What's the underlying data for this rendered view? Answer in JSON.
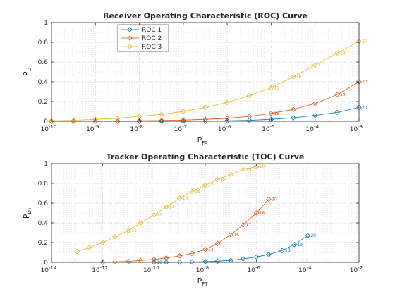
{
  "colors": {
    "roc1": "#0072BD",
    "roc2": "#D95319",
    "roc3": "#EDB120",
    "axis": "#262626",
    "grid_major": "#c8c8c8",
    "grid_minor": "#dddddd"
  },
  "chart_data": [
    {
      "id": "roc",
      "type": "line",
      "title": "Receiver Operating Characteristic (ROC) Curve",
      "xlabel": {
        "main": "P",
        "sub": "FA"
      },
      "ylabel": {
        "main": "P",
        "sub": "D"
      },
      "xscale": "log",
      "xlim": [
        1e-10,
        0.001
      ],
      "ylim": [
        0,
        1
      ],
      "grid": true,
      "legend": {
        "placement": "top-left",
        "entries": [
          "ROC 1",
          "ROC 2",
          "ROC 3"
        ]
      },
      "marker": "diamond",
      "x_ticks": [
        {
          "value": 1e-10,
          "label": "10",
          "exp": "-10"
        },
        {
          "value": 1e-09,
          "label": "10",
          "exp": "-9"
        },
        {
          "value": 1e-08,
          "label": "10",
          "exp": "-8"
        },
        {
          "value": 1e-07,
          "label": "10",
          "exp": "-7"
        },
        {
          "value": 1e-06,
          "label": "10",
          "exp": "-6"
        },
        {
          "value": 1e-05,
          "label": "10",
          "exp": "-5"
        },
        {
          "value": 0.0001,
          "label": "10",
          "exp": "-4"
        },
        {
          "value": 0.001,
          "label": "10",
          "exp": "-3"
        }
      ],
      "y_ticks": [
        {
          "value": 0,
          "label": "0"
        },
        {
          "value": 0.2,
          "label": "0.2"
        },
        {
          "value": 0.4,
          "label": "0.4"
        },
        {
          "value": 0.6,
          "label": "0.6"
        },
        {
          "value": 0.8,
          "label": "0.8"
        },
        {
          "value": 1,
          "label": "1"
        }
      ],
      "series": [
        {
          "name": "ROC 1",
          "color_key": "roc1",
          "x": [
            1e-10,
            3.2e-10,
            1e-09,
            3.2e-09,
            1e-08,
            3.2e-08,
            1e-07,
            3.2e-07,
            1e-06,
            3.2e-06,
            1e-05,
            3.2e-05,
            0.0001,
            0.00032,
            0.001
          ],
          "y": [
            0.0,
            0.0,
            0.0,
            0.0,
            0.0,
            0.0,
            0.0,
            0.002,
            0.005,
            0.01,
            0.02,
            0.035,
            0.06,
            0.09,
            0.14
          ],
          "point_labels": [
            "",
            "",
            "",
            "",
            "",
            "",
            "",
            "",
            "",
            "",
            "",
            "",
            "",
            "",
            "20"
          ]
        },
        {
          "name": "ROC 2",
          "color_key": "roc2",
          "x": [
            1e-10,
            3.2e-10,
            1e-09,
            3.2e-09,
            1e-08,
            3.2e-08,
            1e-07,
            3.2e-07,
            1e-06,
            3.2e-06,
            1e-05,
            3.2e-05,
            0.0001,
            0.00032,
            0.001
          ],
          "y": [
            0.0,
            0.0,
            0.0,
            0.002,
            0.005,
            0.008,
            0.012,
            0.02,
            0.03,
            0.05,
            0.08,
            0.12,
            0.18,
            0.27,
            0.4
          ],
          "point_labels": [
            "",
            "",
            "",
            "",
            "",
            "",
            "",
            "",
            "",
            "",
            "15",
            "",
            "",
            "19",
            "20"
          ]
        },
        {
          "name": "ROC 3",
          "color_key": "roc3",
          "x": [
            1e-10,
            3.2e-10,
            1e-09,
            3.2e-09,
            1e-08,
            3.2e-08,
            1e-07,
            3.2e-07,
            1e-06,
            3.2e-06,
            1e-05,
            3.2e-05,
            0.0001,
            0.00032,
            0.001
          ],
          "y": [
            0.005,
            0.01,
            0.02,
            0.03,
            0.05,
            0.07,
            0.1,
            0.14,
            0.19,
            0.26,
            0.34,
            0.45,
            0.57,
            0.69,
            0.81
          ],
          "point_labels": [
            "",
            "",
            "",
            "",
            "",
            "",
            "",
            "",
            "",
            "",
            "15",
            "16",
            "17",
            "18",
            "20"
          ]
        }
      ]
    },
    {
      "id": "toc",
      "type": "line",
      "title": "Tracker Operating Characteristic (TOC) Curve",
      "xlabel": {
        "main": "P",
        "sub": "FT"
      },
      "ylabel": {
        "main": "P",
        "sub": "DT"
      },
      "xscale": "log",
      "xlim": [
        1e-14,
        0.01
      ],
      "ylim": [
        0,
        1
      ],
      "grid": true,
      "marker": "diamond",
      "x_ticks": [
        {
          "value": 1e-14,
          "label": "10",
          "exp": "-14"
        },
        {
          "value": 1e-12,
          "label": "10",
          "exp": "-12"
        },
        {
          "value": 1e-10,
          "label": "10",
          "exp": "-10"
        },
        {
          "value": 1e-08,
          "label": "10",
          "exp": "-8"
        },
        {
          "value": 1e-06,
          "label": "10",
          "exp": "-6"
        },
        {
          "value": 0.0001,
          "label": "10",
          "exp": "-4"
        },
        {
          "value": 0.01,
          "label": "10",
          "exp": "-2"
        }
      ],
      "y_ticks": [
        {
          "value": 0,
          "label": "0"
        },
        {
          "value": 0.2,
          "label": "0.2"
        },
        {
          "value": 0.4,
          "label": "0.4"
        },
        {
          "value": 0.6,
          "label": "0.6"
        },
        {
          "value": 0.8,
          "label": "0.8"
        },
        {
          "value": 1,
          "label": "1"
        }
      ],
      "series": [
        {
          "name": "ROC 1",
          "color_key": "roc1",
          "x": [
            1e-10,
            3e-10,
            1e-09,
            3e-09,
            1e-08,
            3e-08,
            1e-07,
            3e-07,
            1e-06,
            3e-06,
            1e-05,
            3e-05,
            0.0001
          ],
          "y": [
            0.0,
            0.0,
            0.002,
            0.004,
            0.007,
            0.012,
            0.02,
            0.035,
            0.055,
            0.08,
            0.12,
            0.18,
            0.27
          ],
          "point_labels": [
            "10",
            "",
            "",
            "",
            "",
            "",
            "",
            "",
            "",
            "",
            "18",
            "19",
            "20"
          ]
        },
        {
          "name": "ROC 2",
          "color_key": "roc2",
          "x": [
            1e-12,
            3e-12,
            1e-11,
            3e-11,
            1e-10,
            3e-10,
            1e-09,
            3e-09,
            1e-08,
            3e-08,
            1e-07,
            3e-07,
            1e-06,
            3e-06
          ],
          "y": [
            0.0,
            0.005,
            0.01,
            0.02,
            0.03,
            0.045,
            0.065,
            0.09,
            0.13,
            0.19,
            0.28,
            0.38,
            0.5,
            0.64
          ],
          "point_labels": [
            "",
            "",
            "",
            "",
            "",
            "",
            "",
            "",
            "14",
            "",
            "16",
            "17",
            "18",
            "20"
          ]
        },
        {
          "name": "ROC 3",
          "color_key": "roc3",
          "x": [
            1e-13,
            3e-13,
            1e-12,
            3e-12,
            1e-11,
            3e-11,
            1e-10,
            3e-10,
            1e-09,
            3e-09,
            1e-08,
            3e-08,
            1e-07,
            3e-07,
            1e-06
          ],
          "y": [
            0.11,
            0.15,
            0.2,
            0.26,
            0.32,
            0.4,
            0.48,
            0.56,
            0.65,
            0.72,
            0.78,
            0.84,
            0.89,
            0.94,
            0.97
          ],
          "point_labels": [
            "",
            "",
            "",
            "",
            "11",
            "12",
            "13",
            "14",
            "15",
            "16",
            "17",
            "18",
            "",
            "19",
            "20"
          ]
        }
      ]
    }
  ]
}
